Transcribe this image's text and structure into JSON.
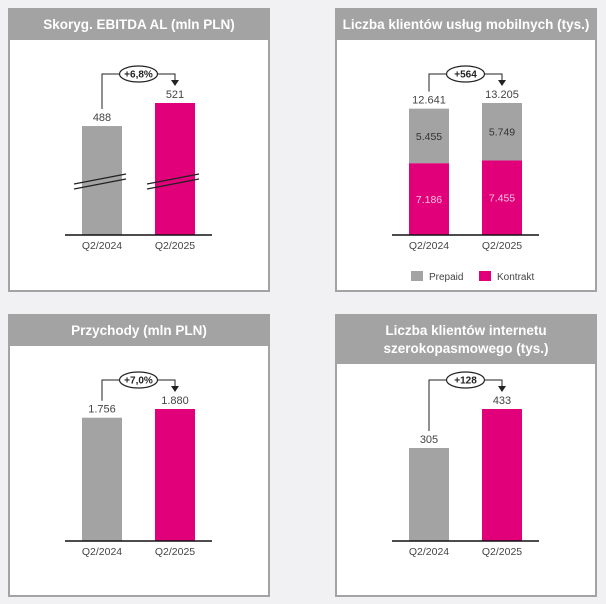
{
  "colors": {
    "gray": "#a3a3a3",
    "magenta": "#e2007a",
    "axis": "#111111",
    "page_bg": "#f1f1f3"
  },
  "chart_data": [
    {
      "type": "bar",
      "title": "Skoryg. EBITDA AL (mln PLN)",
      "categories": [
        "Q2/2024",
        "Q2/2025"
      ],
      "values": [
        488,
        521
      ],
      "value_labels": [
        "488",
        "521"
      ],
      "change_label": "+6,8%",
      "broken_axis": true,
      "ylim": [
        332,
        521
      ]
    },
    {
      "type": "bar",
      "stacked": true,
      "title": "Liczba klientów usług mobilnych (tys.)",
      "categories": [
        "Q2/2024",
        "Q2/2025"
      ],
      "series": [
        {
          "name": "Kontrakt",
          "values": [
            7186,
            7455
          ],
          "value_labels": [
            "7.186",
            "7.455"
          ]
        },
        {
          "name": "Prepaid",
          "values": [
            5455,
            5749
          ],
          "value_labels": [
            "5.455",
            "5.749"
          ]
        }
      ],
      "totals": [
        12641,
        13205
      ],
      "value_labels": [
        "12.641",
        "13.205"
      ],
      "change_label": "+564",
      "legend": [
        "Prepaid",
        "Kontrakt"
      ],
      "legend_position": "bottom",
      "ylim": [
        0,
        13205
      ]
    },
    {
      "type": "bar",
      "title": "Przychody (mln PLN)",
      "categories": [
        "Q2/2024",
        "Q2/2025"
      ],
      "values": [
        1756,
        1880
      ],
      "value_labels": [
        "1.756",
        "1.880"
      ],
      "change_label": "+7,0%",
      "ylim": [
        0,
        1880
      ]
    },
    {
      "type": "bar",
      "title_lines": [
        "Liczba klientów internetu",
        "szerokopasmowego (tys.)"
      ],
      "categories": [
        "Q2/2024",
        "Q2/2025"
      ],
      "values": [
        305,
        433
      ],
      "value_labels": [
        "305",
        "433"
      ],
      "change_label": "+128",
      "ylim": [
        0,
        433
      ]
    }
  ]
}
